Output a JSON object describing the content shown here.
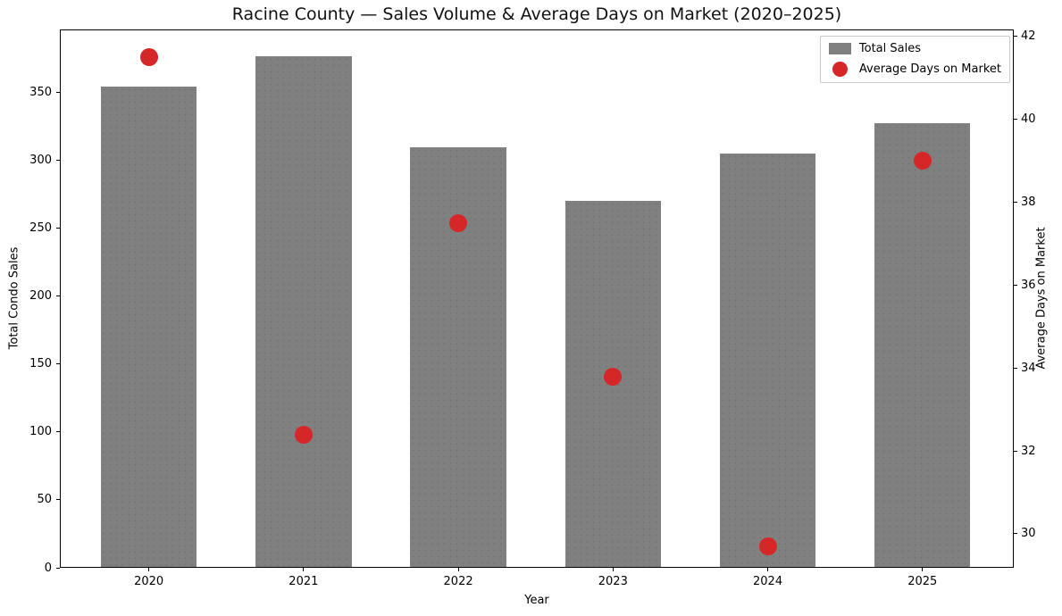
{
  "chart_data": {
    "type": "combo-bar-scatter",
    "title": "Racine County — Sales Volume & Average Days on Market (2020–2025)",
    "xlabel": "Year",
    "ylabel_left": "Total Condo Sales",
    "ylabel_right": "Average Days on Market",
    "categories": [
      "2020",
      "2021",
      "2022",
      "2023",
      "2024",
      "2025"
    ],
    "series": [
      {
        "name": "Total Sales",
        "type": "bar",
        "axis": "left",
        "color": "#808080",
        "values": [
          354,
          376,
          309,
          270,
          305,
          327
        ]
      },
      {
        "name": "Average Days on Market",
        "type": "scatter",
        "axis": "right",
        "color": "#d62728",
        "marker_size_px": 20,
        "values": [
          41.5,
          32.4,
          37.5,
          33.8,
          29.7,
          39.0
        ]
      }
    ],
    "ylim_left": [
      0,
      396
    ],
    "yticks_left": [
      0,
      50,
      100,
      150,
      200,
      250,
      300,
      350
    ],
    "ylim_right": [
      29.18,
      42.17
    ],
    "yticks_right": [
      30,
      32,
      34,
      36,
      38,
      40,
      42
    ],
    "xlim": [
      -0.575,
      5.59
    ],
    "bar_width_units": 0.62,
    "grid": false,
    "legend": {
      "position": "top-right",
      "entries": [
        {
          "label": "Total Sales",
          "swatch": "gray-bar"
        },
        {
          "label": "Average Days on Market",
          "swatch": "red-dot"
        }
      ]
    }
  }
}
